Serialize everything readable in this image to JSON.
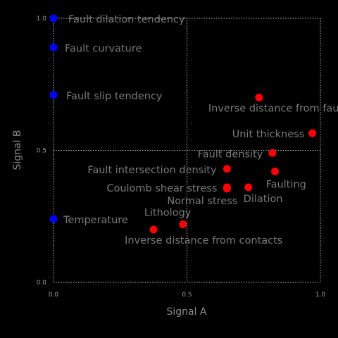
{
  "chart_data": {
    "type": "scatter",
    "title": "",
    "xlabel": "Signal A",
    "ylabel": "Signal B",
    "xlim": [
      0.0,
      1.0
    ],
    "ylim": [
      0.0,
      1.0
    ],
    "xticks": [
      "0.0",
      "0.5",
      "1.0"
    ],
    "yticks": [
      "0.0",
      "0.5",
      "1.0"
    ],
    "grid": true,
    "colors": {
      "blue": "#0000ff",
      "red": "#ff0000"
    },
    "points": [
      {
        "label": "Fault dilation tendency",
        "x": 0.0,
        "y": 1.0,
        "color": "blue"
      },
      {
        "label": "Fault curvature",
        "x": 0.0,
        "y": 0.89,
        "color": "blue"
      },
      {
        "label": "Fault slip tendency",
        "x": 0.0,
        "y": 0.71,
        "color": "blue"
      },
      {
        "label": "Temperature",
        "x": 0.0,
        "y": 0.24,
        "color": "blue"
      },
      {
        "label": "Inverse distance from faults",
        "x": 0.77,
        "y": 0.7,
        "color": "red"
      },
      {
        "label": "Unit thickness",
        "x": 0.97,
        "y": 0.565,
        "color": "red"
      },
      {
        "label": "Fault density",
        "x": 0.82,
        "y": 0.49,
        "color": "red"
      },
      {
        "label": "Fault intersection density",
        "x": 0.65,
        "y": 0.43,
        "color": "red"
      },
      {
        "label": "Faulting",
        "x": 0.83,
        "y": 0.42,
        "color": "red"
      },
      {
        "label": "Coulomb shear stress",
        "x": 0.65,
        "y": 0.36,
        "color": "red"
      },
      {
        "label": "Normal stress",
        "x": 0.65,
        "y": 0.355,
        "color": "red"
      },
      {
        "label": "Dilation",
        "x": 0.73,
        "y": 0.36,
        "color": "red"
      },
      {
        "label": "Lithology",
        "x": 0.485,
        "y": 0.22,
        "color": "red"
      },
      {
        "label": "Inverse distance from contacts",
        "x": 0.375,
        "y": 0.2,
        "color": "red"
      }
    ]
  }
}
